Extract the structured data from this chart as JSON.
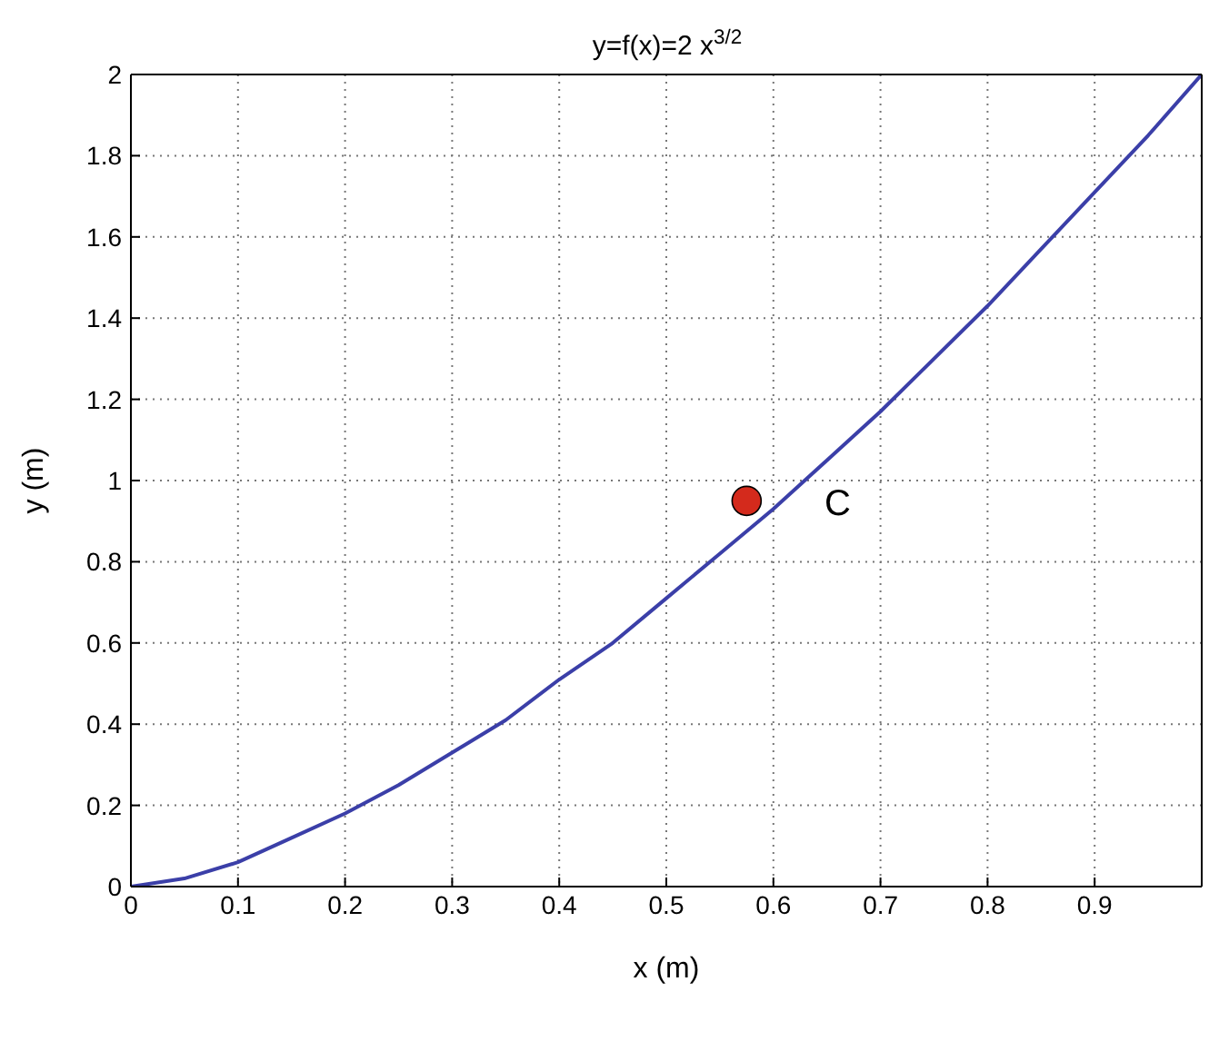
{
  "chart_data": {
    "type": "line",
    "title": "y=f(x)=2 x$^{3/2}$",
    "xlabel": "x (m)",
    "ylabel": "y (m)",
    "xlim": [
      0,
      1
    ],
    "xticks": [
      0,
      0.1,
      0.2,
      0.3,
      0.4,
      0.5,
      0.6,
      0.7,
      0.8,
      0.9
    ],
    "ylim": [
      0,
      2
    ],
    "yticks": [
      0,
      0.2,
      0.4,
      0.6,
      0.8,
      1,
      1.2,
      1.4,
      1.6,
      1.8,
      2
    ],
    "grid": true,
    "line_style": "solid",
    "marker": "none",
    "series": [
      {
        "color": "#3b3fa8",
        "x": [
          0,
          0.05,
          0.1,
          0.15,
          0.2,
          0.25,
          0.3,
          0.35,
          0.4,
          0.45,
          0.5,
          0.55,
          0.6,
          0.65,
          0.7,
          0.75,
          0.8,
          0.85,
          0.9,
          0.95,
          1
        ],
        "values": [
          0,
          0.02,
          0.06,
          0.12,
          0.18,
          0.25,
          0.33,
          0.41,
          0.51,
          0.6,
          0.71,
          0.82,
          0.93,
          1.05,
          1.17,
          1.3,
          1.43,
          1.57,
          1.71,
          1.85,
          2
        ]
      },
      {
        "type": "scatter",
        "marker": "circle",
        "color": "#d42a1c",
        "x": [
          0.575
        ],
        "values": [
          0.95
        ]
      }
    ],
    "annotations": [
      {
        "text": "C",
        "x": 0.575,
        "y": 0.95
      }
    ]
  }
}
